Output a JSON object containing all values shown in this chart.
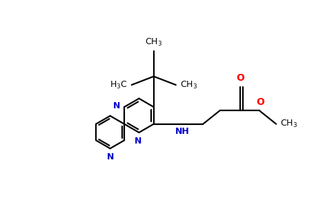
{
  "background_color": "#ffffff",
  "figsize": [
    4.84,
    3.0
  ],
  "dpi": 100,
  "bond_color": "#000000",
  "bond_lw": 1.6,
  "n_color": "#0000cd",
  "o_color": "#ff0000",
  "text_color": "#000000",
  "font_size": 9.0,
  "xlim": [
    -3.8,
    4.5
  ],
  "ylim": [
    -2.2,
    2.8
  ]
}
